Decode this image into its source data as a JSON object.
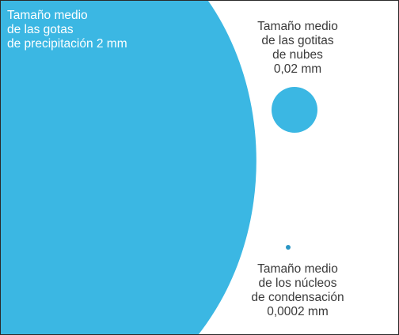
{
  "colors": {
    "drop_fill": "#3bb7e3",
    "nucleus_fill": "#2a96c4",
    "frame_border": "#2a2a2a",
    "label_dark": "#3a3a3a",
    "label_light": "#ffffff"
  },
  "raindrop": {
    "label_lines": [
      "Tamaño medio",
      "de las gotas",
      "de precipitación 2 mm"
    ]
  },
  "cloud_droplet": {
    "label_lines": [
      "Tamaño medio",
      "de las gotitas",
      "de nubes",
      "0,02 mm"
    ]
  },
  "condensation_nucleus": {
    "label_lines": [
      "Tamaño medio",
      "de los núcleos",
      "de condensación",
      "0,0002 mm"
    ]
  }
}
